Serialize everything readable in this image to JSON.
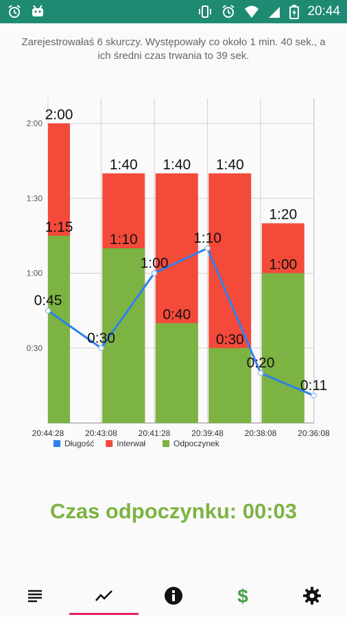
{
  "status_bar": {
    "time": "20:44",
    "left_icons": [
      "alarm-icon",
      "android-icon"
    ],
    "right_icons": [
      "vibrate-icon",
      "alarm-icon",
      "wifi-icon",
      "signal-icon",
      "battery-icon"
    ]
  },
  "summary_text": "Zarejestrowałaś 6 skurczy. Występowały co około 1 min. 40 sek., a ich średni czas trwania to 39 sek.",
  "chart_data": {
    "type": "bar",
    "categories": [
      "20:44:28",
      "20:43:08",
      "20:41:28",
      "20:39:48",
      "20:38:08",
      "20:36:08"
    ],
    "y_tick_labels": [
      "2:00",
      "1:30",
      "1:00",
      "0:30"
    ],
    "y_ticks_seconds": [
      120,
      90,
      60,
      30
    ],
    "ylim_seconds": [
      0,
      120
    ],
    "grid": true,
    "legend_position": "bottom-left",
    "series": [
      {
        "name": "Długość",
        "kind": "line",
        "color": "#2f80ed",
        "values": [
          45,
          30,
          60,
          70,
          20,
          11
        ],
        "labels": [
          "0:45",
          "0:30",
          "1:00",
          "1:10",
          "0:20",
          "0:11"
        ]
      },
      {
        "name": "Interwał",
        "kind": "stacked-bar-total",
        "color": "#f44a3a",
        "values": [
          120,
          100,
          100,
          100,
          80,
          null
        ],
        "labels": [
          "2:00",
          "1:40",
          "1:40",
          "1:40",
          "1:20",
          ""
        ]
      },
      {
        "name": "Odpoczynek",
        "kind": "stacked-bar-base",
        "color": "#7cb342",
        "values": [
          75,
          70,
          40,
          30,
          60,
          null
        ],
        "labels": [
          "1:15",
          "1:10",
          "0:40",
          "0:30",
          "1:00",
          ""
        ]
      }
    ]
  },
  "rest_timer": {
    "label": "Czas odpoczynku:",
    "value": "00:03"
  },
  "bottom_nav": {
    "items": [
      {
        "icon": "list-icon",
        "active": false
      },
      {
        "icon": "chart-icon",
        "active": true
      },
      {
        "icon": "info-icon",
        "active": false
      },
      {
        "icon": "dollar-icon",
        "active": false
      },
      {
        "icon": "settings-icon",
        "active": false
      }
    ]
  }
}
